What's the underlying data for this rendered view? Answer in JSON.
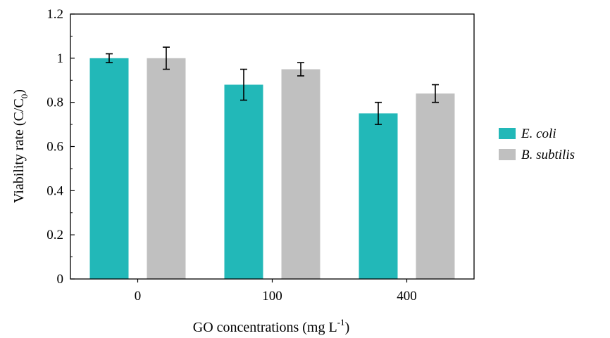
{
  "chart_data": {
    "type": "bar",
    "title": "",
    "categories": [
      "0",
      "100",
      "400"
    ],
    "series": [
      {
        "name": "E. coli",
        "values": [
          1.0,
          0.88,
          0.75
        ],
        "errors": [
          0.02,
          0.07,
          0.05
        ],
        "color": "#22b8b8"
      },
      {
        "name": "B. subtilis",
        "values": [
          1.0,
          0.95,
          0.84
        ],
        "errors": [
          0.05,
          0.03,
          0.04
        ],
        "color": "#c0c0c0"
      }
    ],
    "xlabel": {
      "main": "GO concentrations (mg L",
      "sup": "-1",
      "end": ")"
    },
    "ylabel": {
      "main": "Viability rate (C/C",
      "sub": "0",
      "end": ")"
    },
    "ylim": [
      0,
      1.2
    ],
    "yticks": [
      "0",
      "0.2",
      "0.4",
      "0.6",
      "0.8",
      "1",
      "1.2"
    ],
    "legend_position": "right",
    "grid": false
  }
}
